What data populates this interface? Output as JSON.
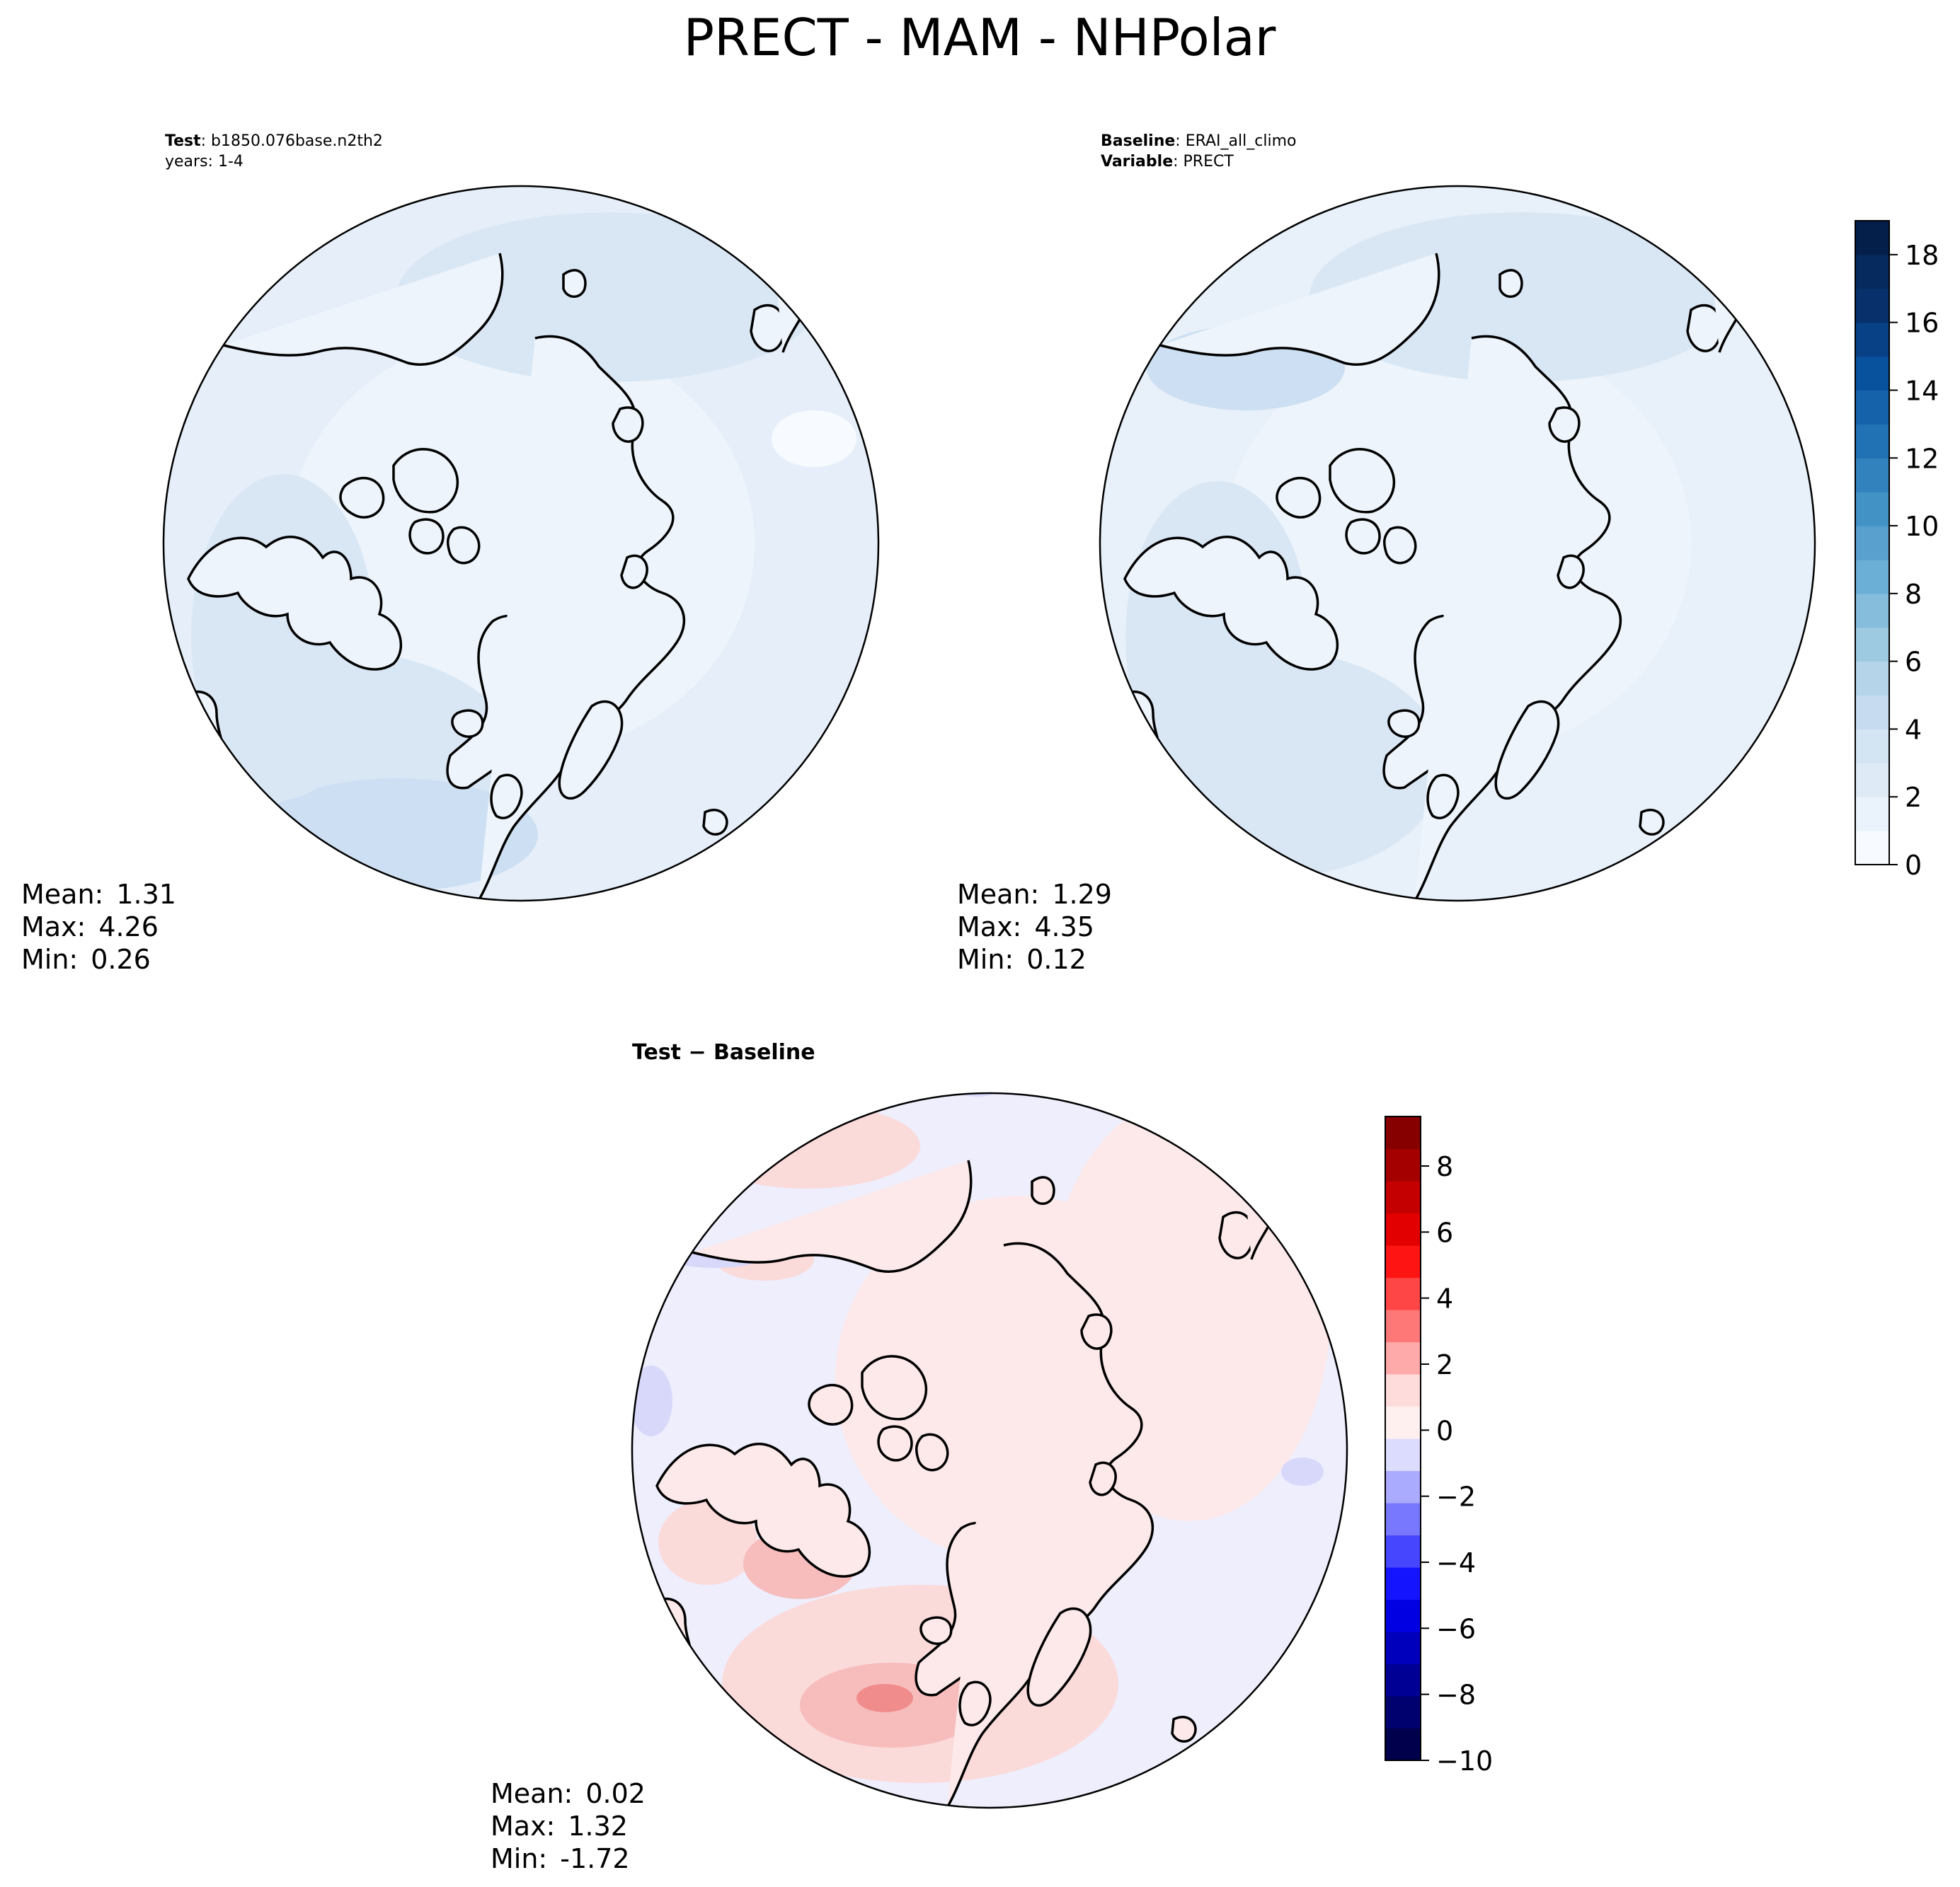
{
  "figure": {
    "title": "PRECT - MAM - NHPolar"
  },
  "panels": [
    {
      "id": "test",
      "header_lines": [
        {
          "key": "Test",
          "value": "b1850.076base.n2th2"
        },
        {
          "key": "",
          "value": "years: 1-4"
        }
      ],
      "stats": {
        "mean_label": "Mean:",
        "mean": "1.31",
        "max_label": "Max:",
        "max": "4.26",
        "min_label": "Min:",
        "min": "0.26"
      },
      "fill_color": "#e6eff9",
      "blotch_colors": [
        "#cddff2",
        "#d9e7f5",
        "#eef4fb"
      ]
    },
    {
      "id": "baseline",
      "header_lines": [
        {
          "key": "Baseline",
          "value": "ERAI_all_climo"
        },
        {
          "key": "Variable",
          "value": "PRECT"
        }
      ],
      "stats": {
        "mean_label": "Mean:",
        "mean": "1.29",
        "max_label": "Max:",
        "max": "4.35",
        "min_label": "Min:",
        "min": "0.12"
      },
      "fill_color": "#e8f0f9",
      "blotch_colors": [
        "#cddff2",
        "#d9e7f5",
        "#eef4fb"
      ]
    },
    {
      "id": "difference",
      "header_lines": [
        {
          "key": "Test − Baseline",
          "value": ""
        }
      ],
      "stats": {
        "mean_label": "Mean:",
        "mean": "0.02",
        "max_label": "Max:",
        "max": "1.32",
        "min_label": "Min:",
        "min": "-1.72"
      },
      "fill_color": "#eeeefd",
      "blotch_colors": [
        "#fbdada",
        "#f7bcbc",
        "#f08c8c",
        "#d8d8fb",
        "#fde9e9"
      ]
    }
  ],
  "colorbars": [
    {
      "id": "precip-colorbar",
      "ticks": [
        "0",
        "2",
        "4",
        "6",
        "8",
        "10",
        "12",
        "14",
        "16",
        "18"
      ],
      "tick_values": [
        0,
        2,
        4,
        6,
        8,
        10,
        12,
        14,
        16,
        18
      ],
      "range": [
        0,
        19
      ],
      "colors": [
        "#f7fbff",
        "#eaf2fb",
        "#deebf7",
        "#d3e4f3",
        "#c6dbef",
        "#b5d4e9",
        "#9ecae1",
        "#86bcdc",
        "#6baed6",
        "#5aa0cf",
        "#4292c6",
        "#3282be",
        "#2171b5",
        "#1562ab",
        "#08519c",
        "#084186",
        "#08306b",
        "#062a5e",
        "#041f4a"
      ]
    },
    {
      "id": "diff-colorbar",
      "ticks": [
        "−10",
        "−8",
        "−6",
        "−4",
        "−2",
        "0",
        "2",
        "4",
        "6",
        "8"
      ],
      "tick_values": [
        -10,
        -8,
        -6,
        -4,
        -2,
        0,
        2,
        4,
        6,
        8
      ],
      "range": [
        -10,
        9.5
      ],
      "colors": [
        "#00004c",
        "#00006e",
        "#000095",
        "#0000bc",
        "#0000e3",
        "#1414ff",
        "#4646ff",
        "#7878ff",
        "#aaaaff",
        "#dcdcff",
        "#fff0f0",
        "#ffdcdc",
        "#ffaaaa",
        "#ff7878",
        "#ff4646",
        "#ff1414",
        "#e30000",
        "#c40000",
        "#a50000",
        "#860000"
      ]
    }
  ]
}
